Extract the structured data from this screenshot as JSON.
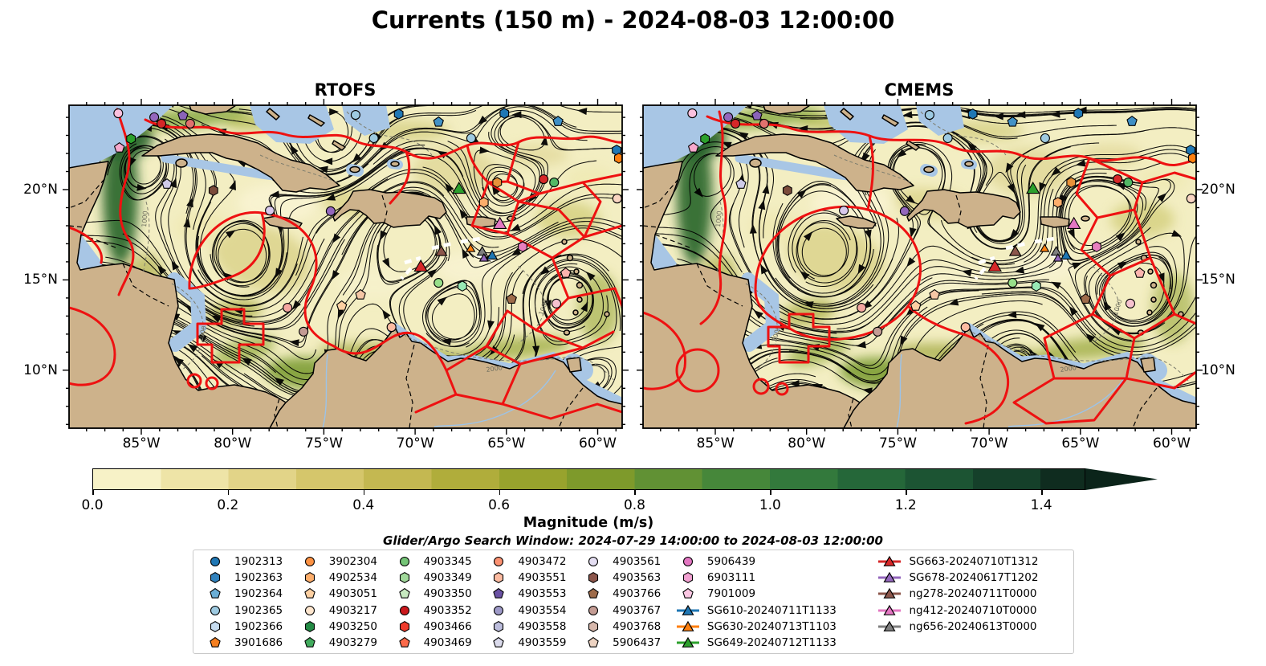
{
  "figure": {
    "title": "Currents (150 m) - 2024-08-03 12:00:00",
    "subtitle": "Glider/Argo Search Window: 2024-07-29 14:00:00 to 2024-08-03 12:00:00"
  },
  "chart_data": {
    "type": "map",
    "title": "Currents (150 m) - 2024-08-03 12:00:00",
    "panels": [
      {
        "label": "RTOFS"
      },
      {
        "label": "CMEMS"
      }
    ],
    "axes": {
      "lon_ticks": [
        {
          "label": "85°W",
          "lon": 85
        },
        {
          "label": "80°W",
          "lon": 80
        },
        {
          "label": "75°W",
          "lon": 75
        },
        {
          "label": "70°W",
          "lon": 70
        },
        {
          "label": "65°W",
          "lon": 65
        },
        {
          "label": "60°W",
          "lon": 60
        }
      ],
      "lat_ticks": [
        {
          "label": "20°N",
          "lat": 20
        },
        {
          "label": "15°N",
          "lat": 15
        },
        {
          "label": "10°N",
          "lat": 10
        }
      ],
      "lon_range_west_to_east": [
        88.96,
        58.66
      ],
      "lat_range_top_to_bottom": [
        24.67,
        6.79
      ]
    },
    "colorbar": {
      "label": "Magnitude (m/s)",
      "tick_labels": [
        "0.0",
        "0.2",
        "0.4",
        "0.6",
        "0.8",
        "1.0",
        "1.2",
        "1.4"
      ],
      "tick_values": [
        0,
        0.2,
        0.4,
        0.6,
        0.8,
        1.0,
        1.2,
        1.4
      ],
      "bar_max_value": 1.465,
      "n_segments": 15,
      "colors": [
        "#f7f2c7",
        "#eee4a7",
        "#e2d488",
        "#d5c66b",
        "#c4b851",
        "#b0ad3b",
        "#98a32d",
        "#7e9a2b",
        "#619134",
        "#46873a",
        "#33793c",
        "#256739",
        "#1c5433",
        "#15402a",
        "#0f2c1f"
      ],
      "arrow_color": "#0b241a"
    },
    "isobath_labels": [
      "1000",
      "2000"
    ],
    "legend": {
      "columns": [
        [
          {
            "label": "1902313",
            "shape": "circle",
            "color": "#1f77b4"
          },
          {
            "label": "1902363",
            "shape": "hexagon",
            "color": "#3182bd"
          },
          {
            "label": "1902364",
            "shape": "pentagon",
            "color": "#6baed6"
          },
          {
            "label": "1902365",
            "shape": "circle",
            "color": "#9ecae1"
          },
          {
            "label": "1902366",
            "shape": "hexagon",
            "color": "#c6dbef"
          },
          {
            "label": "3901686",
            "shape": "pentagon",
            "color": "#f57f20"
          }
        ],
        [
          {
            "label": "3902304",
            "shape": "circle",
            "color": "#fd9243"
          },
          {
            "label": "4902534",
            "shape": "hexagon",
            "color": "#fdae6b"
          },
          {
            "label": "4903051",
            "shape": "pentagon",
            "color": "#fdd0a2"
          },
          {
            "label": "4903217",
            "shape": "circle",
            "color": "#fee6ce"
          },
          {
            "label": "4903250",
            "shape": "hexagon",
            "color": "#238b45"
          },
          {
            "label": "4903279",
            "shape": "pentagon",
            "color": "#41ab5d"
          }
        ],
        [
          {
            "label": "4903345",
            "shape": "circle",
            "color": "#74c476"
          },
          {
            "label": "4903349",
            "shape": "hexagon",
            "color": "#a1d99b"
          },
          {
            "label": "4903350",
            "shape": "pentagon",
            "color": "#c7e9c0"
          },
          {
            "label": "4903352",
            "shape": "circle",
            "color": "#cb181d"
          },
          {
            "label": "4903466",
            "shape": "hexagon",
            "color": "#ef3b2c"
          },
          {
            "label": "4903469",
            "shape": "pentagon",
            "color": "#fb6a4a"
          }
        ],
        [
          {
            "label": "4903472",
            "shape": "circle",
            "color": "#fc9272"
          },
          {
            "label": "4903551",
            "shape": "hexagon",
            "color": "#fcbba1"
          },
          {
            "label": "4903553",
            "shape": "pentagon",
            "color": "#6a51a3"
          },
          {
            "label": "4903554",
            "shape": "circle",
            "color": "#9e9ac8"
          },
          {
            "label": "4903558",
            "shape": "hexagon",
            "color": "#bcbddc"
          },
          {
            "label": "4903559",
            "shape": "pentagon",
            "color": "#dadaeb"
          }
        ],
        [
          {
            "label": "4903561",
            "shape": "circle",
            "color": "#e4def2"
          },
          {
            "label": "4903563",
            "shape": "hexagon",
            "color": "#8c564b"
          },
          {
            "label": "4903766",
            "shape": "pentagon",
            "color": "#9e6b4a"
          },
          {
            "label": "4903767",
            "shape": "circle",
            "color": "#c49c94"
          },
          {
            "label": "4903768",
            "shape": "hexagon",
            "color": "#d7b8ac"
          },
          {
            "label": "5906437",
            "shape": "pentagon",
            "color": "#edd3c2"
          }
        ],
        [
          {
            "label": "5906439",
            "shape": "circle",
            "color": "#e377c2"
          },
          {
            "label": "6903111",
            "shape": "hexagon",
            "color": "#f2a1d2"
          },
          {
            "label": "7901009",
            "shape": "pentagon",
            "color": "#fbc7e3"
          },
          {
            "label": "SG610-20240711T1133",
            "shape": "glider",
            "color": "#1f77b4"
          },
          {
            "label": "SG630-20240713T1103",
            "shape": "glider",
            "color": "#ff7f0e"
          },
          {
            "label": "SG649-20240712T1133",
            "shape": "glider",
            "color": "#2ca02c"
          }
        ],
        [
          {
            "label": "SG663-20240710T1312",
            "shape": "glider",
            "color": "#d62728"
          },
          {
            "label": "SG678-20240617T1202",
            "shape": "glider",
            "color": "#9467bd"
          },
          {
            "label": "ng278-20240711T0000",
            "shape": "glider",
            "color": "#8c564b"
          },
          {
            "label": "ng412-20240710T0000",
            "shape": "glider",
            "color": "#e377c2"
          },
          {
            "label": "ng656-20240613T0000",
            "shape": "glider",
            "color": "#7f7f7f"
          }
        ]
      ]
    },
    "markers": [
      [
        "c",
        "#fbc0dd",
        0.089,
        0.025
      ],
      [
        "c",
        "#9467bd",
        0.154,
        0.037
      ],
      [
        "c",
        "#d62728",
        0.167,
        0.057
      ],
      [
        "p",
        "#8a63b8",
        0.206,
        0.032
      ],
      [
        "c",
        "#e0726e",
        0.219,
        0.057
      ],
      [
        "h",
        "#2ca02c",
        0.112,
        0.104
      ],
      [
        "p",
        "#f7a8cd",
        0.091,
        0.132
      ],
      [
        "p",
        "#cfcbe8",
        0.177,
        0.244
      ],
      [
        "h",
        "#7b4b3a",
        0.261,
        0.264
      ],
      [
        "c",
        "#d9c9ec",
        0.363,
        0.326
      ],
      [
        "c",
        "#9467bd",
        0.473,
        0.328
      ],
      [
        "c",
        "#9ecae1",
        0.518,
        0.03
      ],
      [
        "c",
        "#9ecae1",
        0.551,
        0.102
      ],
      [
        "h",
        "#1f77b4",
        0.596,
        0.027
      ],
      [
        "p",
        "#4292c6",
        0.668,
        0.052
      ],
      [
        "c",
        "#9ecae1",
        0.727,
        0.102
      ],
      [
        "h",
        "#1f77b4",
        0.787,
        0.025
      ],
      [
        "p",
        "#3f8fc5",
        0.884,
        0.05
      ],
      [
        "c",
        "#d62728",
        0.858,
        0.229
      ],
      [
        "c",
        "#52b865",
        0.877,
        0.239
      ],
      [
        "h",
        "#e8923a",
        0.774,
        0.239
      ],
      [
        "t",
        "#2ca02c",
        0.705,
        0.259,
        9
      ],
      [
        "h",
        "#fdae6b",
        0.75,
        0.301
      ],
      [
        "c",
        "#f9d5c2",
        0.991,
        0.289
      ],
      [
        "h",
        "#1f77b4",
        0.99,
        0.139
      ],
      [
        "h",
        "#ff7f0e",
        0.994,
        0.164
      ],
      [
        "t",
        "#e377c2",
        0.779,
        0.368,
        9
      ],
      [
        "t",
        "#8c564b",
        0.673,
        0.453,
        8
      ],
      [
        "t",
        "#ff7f0e",
        0.726,
        0.443,
        6
      ],
      [
        "t",
        "#7f7f7f",
        0.747,
        0.453,
        7
      ],
      [
        "t",
        "#9467bd",
        0.75,
        0.473,
        6
      ],
      [
        "t",
        "#1f77b4",
        0.765,
        0.465,
        7
      ],
      [
        "t",
        "#d62728",
        0.636,
        0.5,
        9
      ],
      [
        "h",
        "#e87fc0",
        0.82,
        0.438
      ],
      [
        "h",
        "#98e8b5",
        0.711,
        0.56
      ],
      [
        "c",
        "#f4a6a0",
        0.395,
        0.627
      ],
      [
        "c",
        "#c49c94",
        0.424,
        0.701
      ],
      [
        "p",
        "#f5c6a5",
        0.527,
        0.587
      ],
      [
        "c",
        "#fcbba1",
        0.583,
        0.687
      ],
      [
        "p",
        "#9e6b4a",
        0.8,
        0.6
      ],
      [
        "c",
        "#f6c2cf",
        0.881,
        0.614
      ],
      [
        "p",
        "#fbb4ae",
        0.898,
        0.52
      ],
      [
        "c",
        "#98df8a",
        0.668,
        0.55
      ],
      [
        "p",
        "#fdd0a2",
        0.493,
        0.622
      ]
    ]
  }
}
